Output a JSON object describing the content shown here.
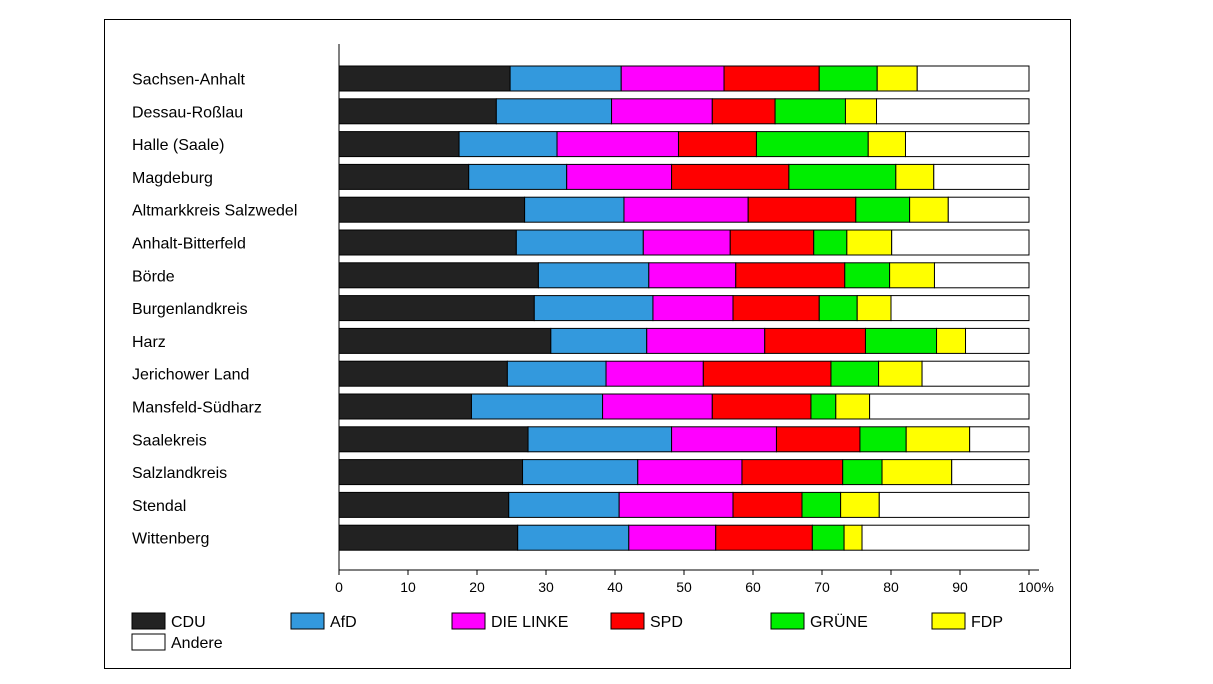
{
  "chart_data": {
    "type": "bar",
    "orientation": "horizontal",
    "stacked": true,
    "title": "",
    "xlabel": "",
    "ylabel": "",
    "xlim": [
      0,
      100
    ],
    "x_ticks": [
      "0",
      "10",
      "20",
      "30",
      "40",
      "50",
      "60",
      "70",
      "80",
      "90",
      "100%"
    ],
    "grid": false,
    "legend_position": "bottom",
    "categories": [
      "Sachsen-Anhalt",
      "Dessau-Roßlau",
      "Halle (Saale)",
      "Magdeburg",
      "Altmarkkreis Salzwedel",
      "Anhalt-Bitterfeld",
      "Börde",
      "Burgenlandkreis",
      "Harz",
      "Jerichower Land",
      "Mansfeld-Südharz",
      "Saalekreis",
      "Salzlandkreis",
      "Stendal",
      "Wittenberg"
    ],
    "series": [
      {
        "name": "CDU",
        "color": "#222222",
        "values": [
          24.8,
          22.8,
          17.4,
          18.8,
          26.9,
          25.7,
          28.9,
          28.3,
          30.7,
          24.4,
          19.2,
          27.4,
          26.6,
          24.6,
          25.9
        ]
      },
      {
        "name": "AfD",
        "color": "#3399dd",
        "values": [
          16.1,
          16.7,
          14.2,
          14.2,
          14.4,
          18.4,
          16.0,
          17.2,
          13.9,
          14.3,
          19.0,
          20.8,
          16.7,
          16.0,
          16.1
        ]
      },
      {
        "name": "DIE LINKE",
        "color": "#ff00ff",
        "values": [
          14.9,
          14.6,
          17.6,
          15.2,
          18.0,
          12.6,
          12.6,
          11.6,
          17.1,
          14.1,
          15.9,
          15.2,
          15.1,
          16.5,
          12.6
        ]
      },
      {
        "name": "SPD",
        "color": "#ff0000",
        "values": [
          13.8,
          9.1,
          11.3,
          17.0,
          15.6,
          12.1,
          15.8,
          12.5,
          14.6,
          18.5,
          14.3,
          12.1,
          14.6,
          10.0,
          14.0
        ]
      },
      {
        "name": "GRÜNE",
        "color": "#00ee00",
        "values": [
          8.4,
          10.2,
          16.2,
          15.5,
          7.8,
          4.8,
          6.5,
          5.5,
          10.3,
          6.9,
          3.6,
          6.7,
          5.7,
          5.6,
          4.6
        ]
      },
      {
        "name": "FDP",
        "color": "#ffff00",
        "values": [
          5.8,
          4.5,
          5.4,
          5.5,
          5.6,
          6.5,
          6.5,
          4.9,
          4.2,
          6.3,
          4.9,
          9.2,
          10.1,
          5.6,
          2.6
        ]
      },
      {
        "name": "Andere",
        "color": "#ffffff",
        "values": [
          16.2,
          22.1,
          17.9,
          13.8,
          11.7,
          19.9,
          13.7,
          20.0,
          9.2,
          15.5,
          23.1,
          8.6,
          11.2,
          21.7,
          24.2
        ]
      }
    ]
  }
}
